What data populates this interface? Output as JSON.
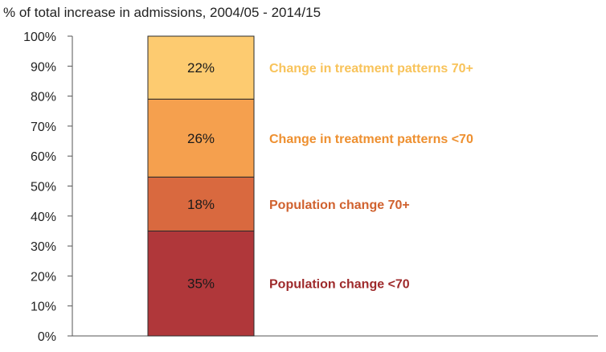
{
  "chart_data": {
    "type": "bar",
    "stacked": true,
    "title": "% of total increase in admissions, 2004/05 - 2014/15",
    "xlabel": "",
    "ylabel": "",
    "ylim": [
      0,
      100
    ],
    "yticks": [
      "0%",
      "10%",
      "20%",
      "30%",
      "40%",
      "50%",
      "60%",
      "70%",
      "80%",
      "90%",
      "100%"
    ],
    "grid": false,
    "legend": "right, inline labels",
    "series": [
      {
        "name": "Population change <70",
        "value": 35,
        "label": "35%",
        "color": "#B0373A"
      },
      {
        "name": "Population change 70+",
        "value": 18,
        "label": "18%",
        "color": "#D9693F"
      },
      {
        "name": "Change in treatment patterns <70",
        "value": 26,
        "label": "26%",
        "color": "#F5A04E"
      },
      {
        "name": "Change in treatment patterns 70+",
        "value": 22,
        "label": "22%",
        "color": "#FDCB70"
      }
    ],
    "label_colors": [
      "#9E2A2B",
      "#D0622F",
      "#EE9030",
      "#F8C35A"
    ]
  }
}
